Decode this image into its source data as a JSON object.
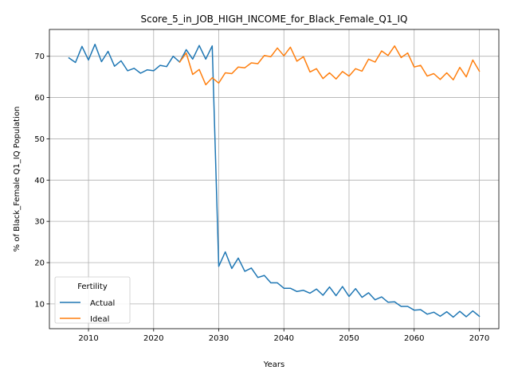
{
  "chart_data": {
    "type": "line",
    "title": "Score_5_in_JOB_HIGH_INCOME_for_Black_Female_Q1_IQ",
    "xlabel": "Years",
    "ylabel": "% of Black_Female Q1_IQ Population",
    "xlim": [
      2004,
      2073
    ],
    "ylim": [
      4,
      76.5
    ],
    "xticks": [
      2010,
      2020,
      2030,
      2040,
      2050,
      2060,
      2070
    ],
    "yticks": [
      10,
      20,
      30,
      40,
      50,
      60,
      70
    ],
    "grid": true,
    "legend": {
      "title": "Fertility",
      "placement": "lower-left"
    },
    "series": [
      {
        "name": "Actual",
        "color": "#1f77b4",
        "x": [
          2007,
          2008,
          2009,
          2010,
          2011,
          2012,
          2013,
          2014,
          2015,
          2016,
          2017,
          2018,
          2019,
          2020,
          2021,
          2022,
          2023,
          2024,
          2025,
          2026,
          2027,
          2028,
          2029,
          2030,
          2031,
          2032,
          2033,
          2034,
          2035,
          2036,
          2037,
          2038,
          2039,
          2040,
          2041,
          2042,
          2043,
          2044,
          2045,
          2046,
          2047,
          2048,
          2049,
          2050,
          2051,
          2052,
          2053,
          2054,
          2055,
          2056,
          2057,
          2058,
          2059,
          2060,
          2061,
          2062,
          2063,
          2064,
          2065,
          2066,
          2067,
          2068,
          2069,
          2070
        ],
        "y": [
          69.6,
          68.5,
          72.4,
          69.1,
          72.9,
          68.7,
          71.2,
          67.6,
          68.9,
          66.5,
          67.1,
          65.9,
          66.7,
          66.5,
          67.8,
          67.5,
          70.0,
          68.6,
          71.6,
          69.3,
          72.6,
          69.3,
          72.5,
          19.1,
          22.6,
          18.6,
          21.1,
          17.9,
          18.7,
          16.4,
          16.9,
          15.1,
          15.1,
          13.8,
          13.8,
          13.0,
          13.3,
          12.6,
          13.6,
          12.1,
          14.1,
          12.0,
          14.2,
          11.8,
          13.7,
          11.6,
          12.7,
          11.0,
          11.7,
          10.4,
          10.5,
          9.4,
          9.4,
          8.5,
          8.6,
          7.5,
          8.0,
          7.0,
          8.1,
          6.8,
          8.2,
          6.9,
          8.3,
          7.0
        ]
      },
      {
        "name": "Ideal",
        "color": "#ff7f0e",
        "x": [
          2024,
          2025,
          2026,
          2027,
          2028,
          2029,
          2030,
          2031,
          2032,
          2033,
          2034,
          2035,
          2036,
          2037,
          2038,
          2039,
          2040,
          2041,
          2042,
          2043,
          2044,
          2045,
          2046,
          2047,
          2048,
          2049,
          2050,
          2051,
          2052,
          2053,
          2054,
          2055,
          2056,
          2057,
          2058,
          2059,
          2060,
          2061,
          2062,
          2063,
          2064,
          2065,
          2066,
          2067,
          2068,
          2069,
          2070
        ],
        "y": [
          68.6,
          70.8,
          65.6,
          66.8,
          63.1,
          64.8,
          63.5,
          66.0,
          65.8,
          67.4,
          67.2,
          68.4,
          68.2,
          70.2,
          69.9,
          72.0,
          70.1,
          72.2,
          68.8,
          69.9,
          66.2,
          67.0,
          64.6,
          66.0,
          64.5,
          66.3,
          65.2,
          67.0,
          66.4,
          69.3,
          68.6,
          71.3,
          70.2,
          72.5,
          69.7,
          70.8,
          67.4,
          67.8,
          65.2,
          65.8,
          64.4,
          66.0,
          64.3,
          67.3,
          65.0,
          69.1,
          66.4
        ]
      }
    ]
  }
}
